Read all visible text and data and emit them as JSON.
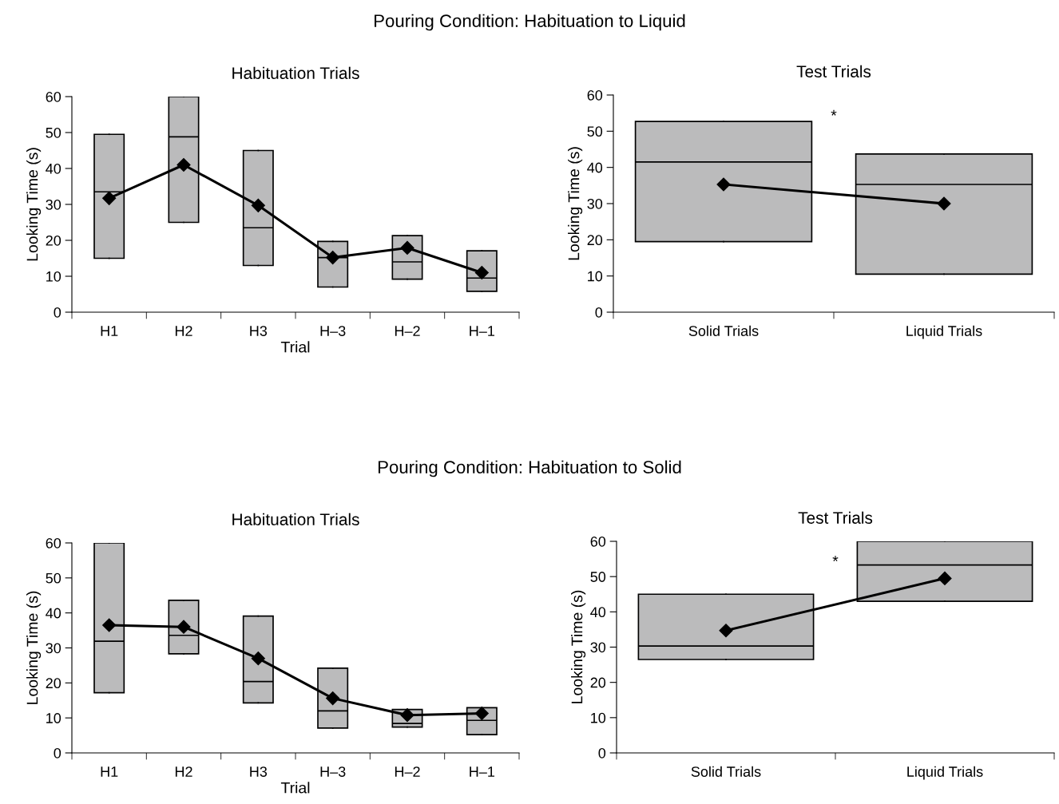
{
  "chart_data": [
    {
      "type": "box",
      "title": "Pouring Condition: Habituation to Liquid",
      "subtitle": "Habituation Trials",
      "xlabel": "Trial",
      "ylabel": "Looking Time (s)",
      "categories": [
        "H1",
        "H2",
        "H3",
        "H–3",
        "H–2",
        "H–1"
      ],
      "ylim": [
        0,
        60
      ],
      "yticks": [
        0,
        10,
        20,
        30,
        40,
        50,
        60
      ],
      "color": "#bbbbbc",
      "boxes": [
        {
          "low": 15,
          "q1": 15,
          "median": 33.5,
          "q3": 49.5,
          "high": 49.5
        },
        {
          "low": 25,
          "q1": 25,
          "median": 48.8,
          "q3": 60,
          "high": 60
        },
        {
          "low": 13,
          "q1": 13,
          "median": 23.5,
          "q3": 45,
          "high": 45
        },
        {
          "low": 7,
          "q1": 7,
          "median": 15.2,
          "q3": 19.7,
          "high": 19.7
        },
        {
          "low": 9.2,
          "q1": 9.2,
          "median": 14,
          "q3": 21.3,
          "high": 21.3
        },
        {
          "low": 5.8,
          "q1": 5.8,
          "median": 9.5,
          "q3": 17.1,
          "high": 17.1
        }
      ],
      "series": [
        {
          "type": "line",
          "color": "#000000",
          "marker": "diamond",
          "values": [
            31.7,
            41,
            29.7,
            15.2,
            17.9,
            11
          ]
        }
      ]
    },
    {
      "type": "box",
      "title": "Test Trials",
      "ylabel": "Looking Time (s)",
      "categories": [
        "Solid Trials",
        "Liquid Trials"
      ],
      "ylim": [
        0,
        60
      ],
      "yticks": [
        0,
        10,
        20,
        30,
        40,
        50,
        60
      ],
      "color": "#bbbbbc",
      "annotations": [
        "*"
      ],
      "boxes": [
        {
          "low": 19.5,
          "q1": 19.5,
          "median": 41.5,
          "q3": 52.7,
          "high": 52.7
        },
        {
          "low": 10.5,
          "q1": 10.5,
          "median": 35.3,
          "q3": 43.7,
          "high": 43.7
        }
      ],
      "series": [
        {
          "type": "line",
          "color": "#000000",
          "marker": "diamond",
          "values": [
            35.3,
            30
          ]
        }
      ]
    },
    {
      "type": "box",
      "title": "Pouring Condition: Habituation to Solid",
      "subtitle": "Habituation Trials",
      "xlabel": "Trial",
      "ylabel": "Looking Time (s)",
      "categories": [
        "H1",
        "H2",
        "H3",
        "H–3",
        "H–2",
        "H–1"
      ],
      "ylim": [
        0,
        60
      ],
      "yticks": [
        0,
        10,
        20,
        30,
        40,
        50,
        60
      ],
      "color": "#bbbbbc",
      "boxes": [
        {
          "low": 17.2,
          "q1": 17.2,
          "median": 31.9,
          "q3": 60,
          "high": 60
        },
        {
          "low": 28.3,
          "q1": 28.3,
          "median": 33.6,
          "q3": 43.6,
          "high": 43.6
        },
        {
          "low": 14.3,
          "q1": 14.3,
          "median": 20.4,
          "q3": 39.1,
          "high": 39.1
        },
        {
          "low": 7.1,
          "q1": 7.1,
          "median": 12,
          "q3": 24.2,
          "high": 24.2
        },
        {
          "low": 7.4,
          "q1": 7.4,
          "median": 8.4,
          "q3": 12.4,
          "high": 12.4
        },
        {
          "low": 5.2,
          "q1": 5.2,
          "median": 9.3,
          "q3": 12.9,
          "high": 12.9
        }
      ],
      "series": [
        {
          "type": "line",
          "color": "#000000",
          "marker": "diamond",
          "values": [
            36.5,
            36,
            27,
            15.6,
            10.8,
            11.3
          ]
        }
      ]
    },
    {
      "type": "box",
      "title": "Test Trials",
      "ylabel": "Looking Time (s)",
      "categories": [
        "Solid Trials",
        "Liquid Trials"
      ],
      "ylim": [
        0,
        60
      ],
      "yticks": [
        0,
        10,
        20,
        30,
        40,
        50,
        60
      ],
      "color": "#bbbbbc",
      "annotations": [
        "*"
      ],
      "boxes": [
        {
          "low": 26.5,
          "q1": 26.5,
          "median": 30.3,
          "q3": 45,
          "high": 45
        },
        {
          "low": 43,
          "q1": 43,
          "median": 53.3,
          "q3": 60,
          "high": 60
        }
      ],
      "series": [
        {
          "type": "line",
          "color": "#000000",
          "marker": "diamond",
          "values": [
            34.7,
            49.5
          ]
        }
      ]
    }
  ]
}
